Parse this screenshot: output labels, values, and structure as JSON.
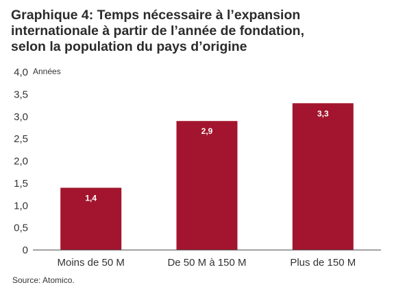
{
  "chart_data": {
    "type": "bar",
    "title_lines": [
      "Graphique 4: Temps nécessaire à l’expansion",
      "internationale à partir de l’année de fondation,",
      "selon la population du pays d’origine"
    ],
    "ylabel": "Années",
    "categories": [
      "Moins de 50 M",
      "De 50 M à 150 M",
      "Plus de 150 M"
    ],
    "values": [
      1.4,
      2.9,
      3.3
    ],
    "value_labels": [
      "1,4",
      "2,9",
      "3,3"
    ],
    "ylim": [
      0,
      4.0
    ],
    "yticks": [
      {
        "value": 0,
        "label": "0"
      },
      {
        "value": 0.5,
        "label": "0,5"
      },
      {
        "value": 1.0,
        "label": "1,0"
      },
      {
        "value": 1.5,
        "label": "1,5"
      },
      {
        "value": 2.0,
        "label": "2,0"
      },
      {
        "value": 2.5,
        "label": "2,5"
      },
      {
        "value": 3.0,
        "label": "3,0"
      },
      {
        "value": 3.5,
        "label": "3,5"
      },
      {
        "value": 4.0,
        "label": "4,0"
      }
    ],
    "grid": false,
    "bar_color": "#a3152e",
    "source": "Source: Atomico."
  }
}
